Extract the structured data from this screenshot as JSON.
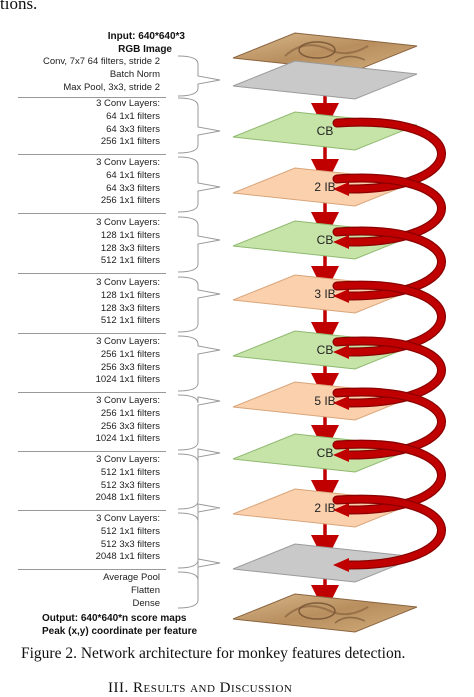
{
  "top_fragment": "tions.",
  "input_title_line1": "Input: 640*640*3",
  "input_title_line2": "RGB Image",
  "label_groups": [
    {
      "lines": [
        "Conv, 7x7 64 filters, stride 2",
        "Batch Norm",
        "Max Pool, 3x3, stride 2"
      ]
    },
    {
      "lines": [
        "3 Conv Layers:",
        "64 1x1 filters",
        "64 3x3 filters",
        "256 1x1 filters"
      ]
    },
    {
      "lines": [
        "3 Conv Layers:",
        "64 1x1 filters",
        "64 3x3 filters",
        "256 1x1 filters"
      ]
    },
    {
      "lines": [
        "3 Conv Layers:",
        "128 1x1 filters",
        "128 3x3 filters",
        "512 1x1 filters"
      ]
    },
    {
      "lines": [
        "3 Conv Layers:",
        "128 1x1 filters",
        "128 3x3 filters",
        "512 1x1 filters"
      ]
    },
    {
      "lines": [
        "3 Conv Layers:",
        "256 1x1 filters",
        "256 3x3 filters",
        "1024 1x1 filters"
      ]
    },
    {
      "lines": [
        "3 Conv Layers:",
        "256 1x1 filters",
        "256 3x3 filters",
        "1024 1x1 filters"
      ]
    },
    {
      "lines": [
        "3 Conv Layers:",
        "512 1x1 filters",
        "512 3x3 filters",
        "2048 1x1 filters"
      ]
    },
    {
      "lines": [
        "3 Conv Layers:",
        "512 1x1 filters",
        "512 3x3 filters",
        "2048 1x1 filters"
      ]
    },
    {
      "lines": [
        "Average Pool",
        "Flatten",
        "Dense"
      ]
    }
  ],
  "output_title_line1": "Output: 640*640*n score maps",
  "output_title_line2": "Peak (x,y) coordinate per feature",
  "layers": [
    {
      "label": "",
      "kind": "image"
    },
    {
      "label": "",
      "kind": "gray"
    },
    {
      "label": "CB",
      "kind": "green"
    },
    {
      "label": "2 IB",
      "kind": "orange"
    },
    {
      "label": "CB",
      "kind": "green"
    },
    {
      "label": "3 IB",
      "kind": "orange"
    },
    {
      "label": "CB",
      "kind": "green"
    },
    {
      "label": "5 IB",
      "kind": "orange"
    },
    {
      "label": "CB",
      "kind": "green"
    },
    {
      "label": "2 IB",
      "kind": "orange"
    },
    {
      "label": "",
      "kind": "gray"
    },
    {
      "label": "",
      "kind": "image"
    }
  ],
  "colors": {
    "green": "#c6e3a8",
    "green_stroke": "#8fb970",
    "orange": "#fbd0ad",
    "orange_stroke": "#d8a57a",
    "gray": "#c9c9c9",
    "gray_stroke": "#9b9b9b",
    "arrow": "#c00000",
    "arrow_dark": "#8a0000",
    "image_sand": "#c8a377",
    "image_dark": "#8a6440",
    "bracket": "#9a9a9a"
  },
  "caption": "Figure 2. Network architecture for monkey features detection.",
  "section_heading": "III.    Results and Discussion"
}
